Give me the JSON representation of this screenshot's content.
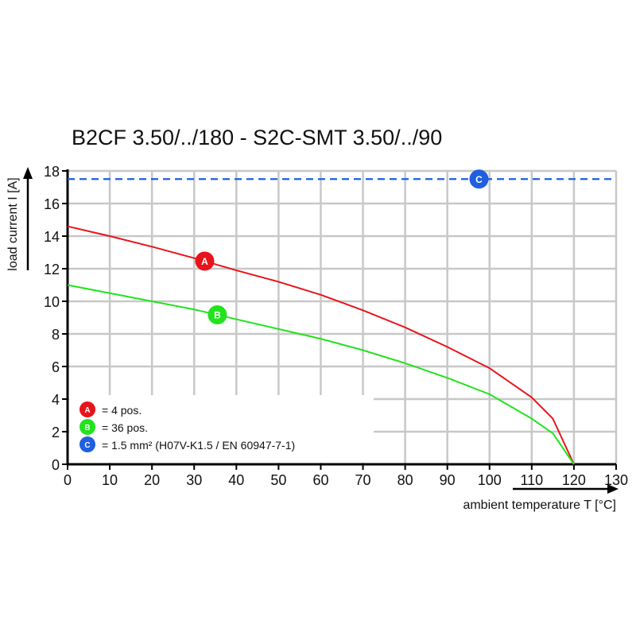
{
  "chart_data": {
    "type": "line",
    "title": "B2CF 3.50/../180 - S2C-SMT 3.50/../90",
    "xlabel": "ambient temperature T [°C]",
    "ylabel": "load current I [A]",
    "xlim": [
      0,
      130
    ],
    "ylim": [
      0,
      18
    ],
    "xticks": [
      0,
      10,
      20,
      30,
      40,
      50,
      60,
      70,
      80,
      90,
      100,
      110,
      120,
      130
    ],
    "yticks": [
      0,
      2,
      4,
      6,
      8,
      10,
      12,
      14,
      16,
      18
    ],
    "grid": true,
    "legend_position": "bottom-left",
    "series": [
      {
        "name": "A",
        "label": "= 4 pos.",
        "color": "#e8141b",
        "x": [
          0,
          10,
          20,
          30,
          40,
          50,
          60,
          70,
          80,
          90,
          100,
          110,
          115,
          120
        ],
        "y": [
          14.6,
          14.0,
          13.35,
          12.65,
          11.9,
          11.2,
          10.4,
          9.45,
          8.4,
          7.2,
          5.9,
          4.1,
          2.8,
          0
        ]
      },
      {
        "name": "B",
        "label": "= 36 pos.",
        "color": "#22e31d",
        "x": [
          0,
          10,
          20,
          30,
          40,
          50,
          60,
          70,
          80,
          90,
          100,
          110,
          115,
          120
        ],
        "y": [
          11.0,
          10.5,
          10.0,
          9.5,
          8.9,
          8.3,
          7.7,
          7.0,
          6.2,
          5.3,
          4.3,
          2.8,
          1.9,
          0
        ]
      },
      {
        "name": "C",
        "label": "= 1.5 mm² (H07V-K1.5 / EN 60947-7-1)",
        "color": "#1f5fe0",
        "style": "dashed",
        "x": [
          0,
          130
        ],
        "y": [
          17.5,
          17.5
        ]
      }
    ],
    "markers": [
      {
        "series": "A",
        "x": 32.5
      },
      {
        "series": "B",
        "x": 35.5
      },
      {
        "series": "C",
        "x": 97.5
      }
    ]
  }
}
